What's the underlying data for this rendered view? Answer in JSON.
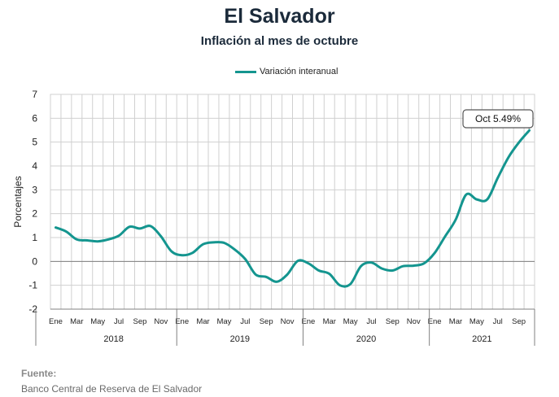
{
  "header": {
    "title": "El Salvador",
    "subtitle": "Inflación al mes de octubre"
  },
  "footer": {
    "source_label": "Fuente:",
    "source_text": "Banco Central de Reserva de El Salvador"
  },
  "colors": {
    "series": "#14958f",
    "grid": "#d0d0d0",
    "axis": "#808080"
  },
  "chart_data": {
    "type": "line",
    "ylabel": "Porcentajes",
    "ylim": [
      -2,
      7
    ],
    "yticks": [
      7,
      6,
      5,
      4,
      3,
      2,
      1,
      0,
      -1,
      -2
    ],
    "grid": true,
    "legend_position": "top-center",
    "month_tick_labels": [
      "Ene",
      "Mar",
      "May",
      "Jul",
      "Sep",
      "Nov",
      "Ene",
      "Mar",
      "May",
      "Jul",
      "Sep",
      "Nov",
      "Ene",
      "Mar",
      "May",
      "Jul",
      "Sep",
      "Nov",
      "Ene",
      "Mar",
      "May",
      "Jul",
      "Sep"
    ],
    "year_labels": [
      "2018",
      "2019",
      "2020",
      "2021"
    ],
    "annotation": "Oct 5.49%",
    "series": [
      {
        "name": "Variación interanual",
        "x": [
          "2018-01",
          "2018-02",
          "2018-03",
          "2018-04",
          "2018-05",
          "2018-06",
          "2018-07",
          "2018-08",
          "2018-09",
          "2018-10",
          "2018-11",
          "2018-12",
          "2019-01",
          "2019-02",
          "2019-03",
          "2019-04",
          "2019-05",
          "2019-06",
          "2019-07",
          "2019-08",
          "2019-09",
          "2019-10",
          "2019-11",
          "2019-12",
          "2020-01",
          "2020-02",
          "2020-03",
          "2020-04",
          "2020-05",
          "2020-06",
          "2020-07",
          "2020-08",
          "2020-09",
          "2020-10",
          "2020-11",
          "2020-12",
          "2021-01",
          "2021-02",
          "2021-03",
          "2021-04",
          "2021-05",
          "2021-06",
          "2021-07",
          "2021-08",
          "2021-09",
          "2021-10"
        ],
        "values": [
          1.42,
          1.25,
          0.92,
          0.88,
          0.84,
          0.92,
          1.08,
          1.45,
          1.38,
          1.48,
          1.05,
          0.42,
          0.26,
          0.36,
          0.72,
          0.8,
          0.78,
          0.5,
          0.1,
          -0.55,
          -0.65,
          -0.85,
          -0.55,
          0.02,
          -0.08,
          -0.38,
          -0.52,
          -1.0,
          -0.95,
          -0.2,
          -0.05,
          -0.3,
          -0.38,
          -0.2,
          -0.18,
          -0.08,
          0.35,
          1.05,
          1.75,
          2.8,
          2.6,
          2.6,
          3.5,
          4.35,
          4.98,
          5.49
        ]
      }
    ]
  }
}
